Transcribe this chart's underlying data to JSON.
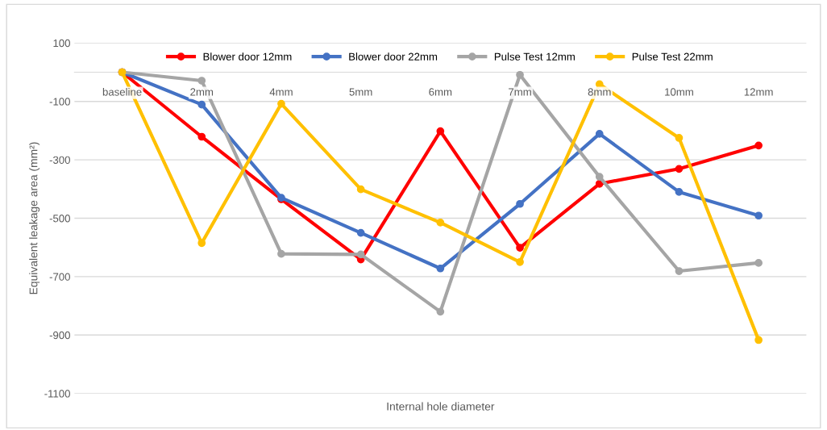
{
  "chart_data": {
    "type": "line",
    "xlabel": "Internal hole diameter",
    "ylabel": "Equivalent leakage area (mm²)",
    "categories": [
      "baseline",
      "2mm",
      "4mm",
      "5mm",
      "6mm",
      "7mm",
      "8mm",
      "10mm",
      "12mm"
    ],
    "series": [
      {
        "name": "Blower door 12mm",
        "color": "#ff0000",
        "values": [
          0,
          -221,
          -435,
          -641,
          -202,
          -601,
          -382,
          -331,
          -251
        ]
      },
      {
        "name": "Blower door 22mm",
        "color": "#4472c4",
        "values": [
          0,
          -111,
          -430,
          -550,
          -672,
          -451,
          -211,
          -410,
          -491
        ]
      },
      {
        "name": "Pulse Test 12mm",
        "color": "#a5a5a5",
        "values": [
          0,
          -29,
          -622,
          -624,
          -820,
          -9,
          -358,
          -681,
          -653
        ]
      },
      {
        "name": "Pulse Test 22mm",
        "color": "#ffc000",
        "values": [
          0,
          -585,
          -108,
          -401,
          -515,
          -650,
          -41,
          -225,
          -917
        ]
      }
    ],
    "ylim": [
      -1100,
      100
    ],
    "yticks": [
      -1100,
      -900,
      -700,
      -500,
      -300,
      -100,
      100
    ],
    "grid": "y",
    "legend": "top",
    "marker": "circle",
    "line_style": "solid"
  }
}
